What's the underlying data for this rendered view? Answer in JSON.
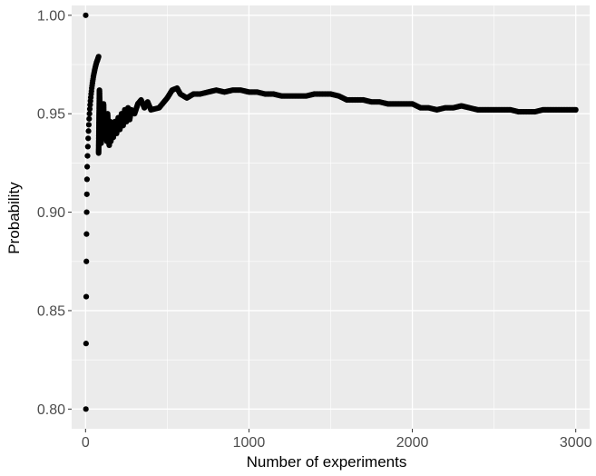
{
  "chart_data": {
    "type": "scatter",
    "title": "",
    "xlabel": "Number of experiments",
    "ylabel": "Probability",
    "xlim": [
      -85,
      3085
    ],
    "ylim": [
      0.79,
      1.005
    ],
    "x_ticks": [
      0,
      1000,
      2000,
      3000
    ],
    "x_tick_labels": [
      "0",
      "1000",
      "2000",
      "3000"
    ],
    "y_ticks": [
      0.8,
      0.85,
      0.9,
      0.95,
      1.0
    ],
    "y_tick_labels": [
      "0.80",
      "0.85",
      "0.90",
      "0.95",
      "1.00"
    ],
    "grid": true,
    "legend": "none",
    "colors": {
      "panel": "#ebebeb",
      "grid_major": "#ffffff",
      "points": "#000000"
    },
    "early_points": [
      [
        1,
        1.0
      ],
      [
        2,
        0.8
      ],
      [
        3,
        0.8333
      ],
      [
        4,
        0.8571
      ],
      [
        5,
        0.875
      ],
      [
        6,
        0.8889
      ],
      [
        7,
        0.9
      ],
      [
        8,
        0.9091
      ],
      [
        9,
        0.9167
      ],
      [
        10,
        0.9231
      ],
      [
        12,
        0.9286
      ],
      [
        14,
        0.9333
      ],
      [
        16,
        0.9375
      ],
      [
        18,
        0.9412
      ],
      [
        20,
        0.9444
      ],
      [
        22,
        0.9474
      ],
      [
        24,
        0.95
      ],
      [
        26,
        0.9524
      ],
      [
        28,
        0.9545
      ],
      [
        30,
        0.9565
      ],
      [
        32,
        0.9583
      ],
      [
        34,
        0.96
      ],
      [
        36,
        0.9615
      ],
      [
        38,
        0.963
      ],
      [
        40,
        0.9643
      ],
      [
        42,
        0.9655
      ],
      [
        44,
        0.9667
      ],
      [
        46,
        0.9677
      ],
      [
        48,
        0.9688
      ],
      [
        50,
        0.9697
      ],
      [
        52,
        0.9706
      ],
      [
        54,
        0.9714
      ],
      [
        56,
        0.9722
      ],
      [
        58,
        0.973
      ],
      [
        60,
        0.9737
      ],
      [
        62,
        0.9744
      ],
      [
        64,
        0.975
      ],
      [
        66,
        0.9756
      ],
      [
        68,
        0.9762
      ],
      [
        70,
        0.9767
      ],
      [
        72,
        0.977
      ],
      [
        74,
        0.9775
      ],
      [
        76,
        0.978
      ],
      [
        78,
        0.9785
      ],
      [
        80,
        0.979
      ]
    ],
    "running_path": [
      [
        80,
        0.93
      ],
      [
        85,
        0.962
      ],
      [
        90,
        0.945
      ],
      [
        95,
        0.935
      ],
      [
        100,
        0.952
      ],
      [
        105,
        0.94
      ],
      [
        110,
        0.955
      ],
      [
        115,
        0.938
      ],
      [
        120,
        0.948
      ],
      [
        125,
        0.942
      ],
      [
        130,
        0.936
      ],
      [
        135,
        0.95
      ],
      [
        140,
        0.94
      ],
      [
        145,
        0.934
      ],
      [
        150,
        0.946
      ],
      [
        155,
        0.936
      ],
      [
        160,
        0.944
      ],
      [
        170,
        0.938
      ],
      [
        180,
        0.946
      ],
      [
        190,
        0.94
      ],
      [
        200,
        0.948
      ],
      [
        210,
        0.942
      ],
      [
        220,
        0.95
      ],
      [
        230,
        0.944
      ],
      [
        240,
        0.952
      ],
      [
        250,
        0.946
      ],
      [
        260,
        0.953
      ],
      [
        270,
        0.947
      ],
      [
        280,
        0.952
      ],
      [
        300,
        0.95
      ],
      [
        320,
        0.955
      ],
      [
        340,
        0.957
      ],
      [
        360,
        0.953
      ],
      [
        380,
        0.956
      ],
      [
        400,
        0.952
      ],
      [
        450,
        0.953
      ],
      [
        500,
        0.958
      ],
      [
        530,
        0.962
      ],
      [
        560,
        0.963
      ],
      [
        580,
        0.96
      ],
      [
        620,
        0.958
      ],
      [
        660,
        0.96
      ],
      [
        700,
        0.96
      ],
      [
        750,
        0.961
      ],
      [
        800,
        0.962
      ],
      [
        850,
        0.961
      ],
      [
        900,
        0.962
      ],
      [
        950,
        0.962
      ],
      [
        1000,
        0.961
      ],
      [
        1050,
        0.961
      ],
      [
        1100,
        0.96
      ],
      [
        1150,
        0.96
      ],
      [
        1200,
        0.959
      ],
      [
        1250,
        0.959
      ],
      [
        1300,
        0.959
      ],
      [
        1350,
        0.959
      ],
      [
        1400,
        0.96
      ],
      [
        1450,
        0.96
      ],
      [
        1500,
        0.96
      ],
      [
        1550,
        0.959
      ],
      [
        1600,
        0.957
      ],
      [
        1650,
        0.957
      ],
      [
        1700,
        0.957
      ],
      [
        1750,
        0.956
      ],
      [
        1800,
        0.956
      ],
      [
        1850,
        0.955
      ],
      [
        1900,
        0.955
      ],
      [
        1950,
        0.955
      ],
      [
        2000,
        0.955
      ],
      [
        2050,
        0.953
      ],
      [
        2100,
        0.953
      ],
      [
        2150,
        0.952
      ],
      [
        2200,
        0.953
      ],
      [
        2250,
        0.953
      ],
      [
        2300,
        0.954
      ],
      [
        2350,
        0.953
      ],
      [
        2400,
        0.952
      ],
      [
        2450,
        0.952
      ],
      [
        2500,
        0.952
      ],
      [
        2550,
        0.952
      ],
      [
        2600,
        0.952
      ],
      [
        2650,
        0.951
      ],
      [
        2700,
        0.951
      ],
      [
        2750,
        0.951
      ],
      [
        2800,
        0.952
      ],
      [
        2850,
        0.952
      ],
      [
        2900,
        0.952
      ],
      [
        2950,
        0.952
      ],
      [
        3000,
        0.952
      ]
    ]
  }
}
